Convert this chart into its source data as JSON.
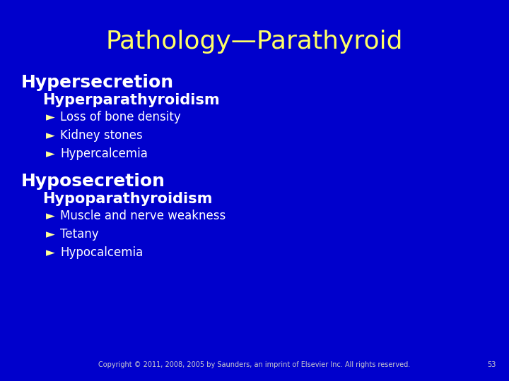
{
  "background_color": "#0000CC",
  "title": "Pathology—Parathyroid",
  "title_color": "#FFFF66",
  "title_fontsize": 26,
  "section1_header": "Hypersecretion",
  "section1_header_color": "#FFFFFF",
  "section1_header_fontsize": 18,
  "section1_sub": "Hyperparathyroidism",
  "section1_sub_color": "#FFFFFF",
  "section1_sub_fontsize": 15,
  "section1_bullets": [
    "Loss of bone density",
    "Kidney stones",
    "Hypercalcemia"
  ],
  "section1_bullet_color": "#FFFFFF",
  "section1_bullet_fontsize": 12,
  "section2_header": "Hyposecretion",
  "section2_header_color": "#FFFFFF",
  "section2_header_fontsize": 18,
  "section2_sub": "Hypoparathyroidism",
  "section2_sub_color": "#FFFFFF",
  "section2_sub_fontsize": 15,
  "section2_bullets": [
    "Muscle and nerve weakness",
    "Tetany",
    "Hypocalcemia"
  ],
  "section2_bullet_color": "#FFFFFF",
  "section2_bullet_fontsize": 12,
  "bullet_symbol": "►",
  "bullet_color": "#FFFF99",
  "copyright_text": "Copyright © 2011, 2008, 2005 by Saunders, an imprint of Elsevier Inc. All rights reserved.",
  "copyright_color": "#CCCCCC",
  "copyright_fontsize": 7,
  "page_number": "53",
  "page_number_color": "#CCCCCC",
  "page_number_fontsize": 7
}
